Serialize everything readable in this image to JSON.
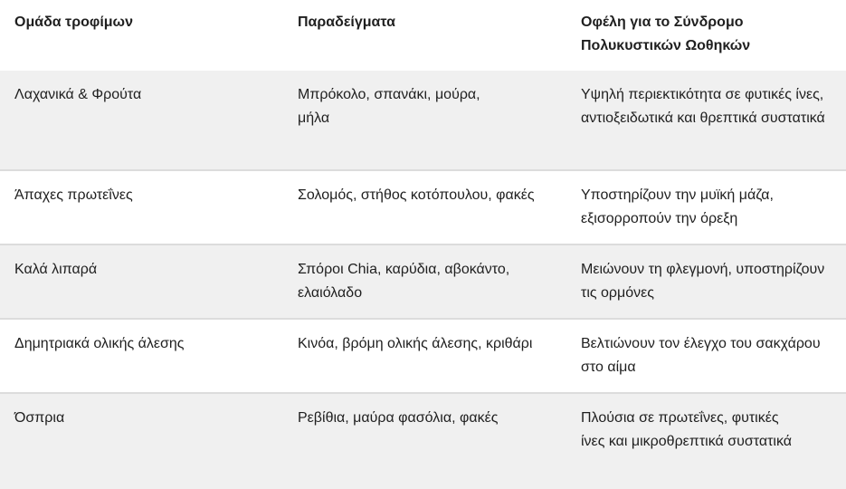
{
  "table": {
    "headers": [
      "Ομάδα τροφίμων",
      "Παραδείγματα",
      "Οφέλη για το Σύνδρομο Πολυκυστικών Ωοθηκών"
    ],
    "rows": [
      [
        "Λαχανικά & Φρούτα",
        "Μπρόκολο, σπανάκι, μούρα, μήλα",
        "Υψηλή περιεκτικότητα σε φυτικές ίνες, αντιοξειδωτικά και θρεπτικά συστατικά"
      ],
      [
        "Άπαχες πρωτεΐνες",
        "Σολομός, στήθος κοτόπουλου, φακές",
        "Υποστηρίζουν την μυϊκή μάζα, εξισορροπούν την όρεξη"
      ],
      [
        "Καλά λιπαρά",
        "Σπόροι Chia, καρύδια, αβοκάντο, ελαιόλαδο",
        "Μειώνουν τη φλεγμονή, υποστηρίζουν τις ορμόνες"
      ],
      [
        "Δημητριακά ολικής άλεσης",
        "Κινόα, βρόμη ολικής άλεσης, κριθάρι",
        "Βελτιώνουν τον έλεγχο του σακχάρου στο αίμα"
      ],
      [
        "Όσπρια",
        "Ρεβίθια, μαύρα φασόλια, φακές",
        "Πλούσια σε πρωτεΐνες, φυτικές ίνες και μικροθρεπτικά συστατικά"
      ]
    ]
  }
}
